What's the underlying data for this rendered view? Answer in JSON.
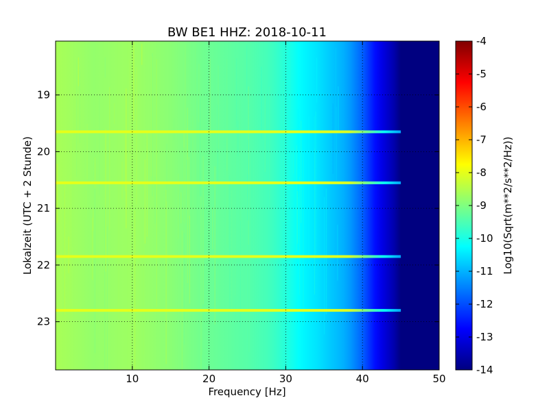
{
  "chart_data": {
    "type": "heatmap",
    "title": "BW BE1 HHZ: 2018-10-11",
    "xlabel": "Frequency [Hz]",
    "ylabel": "Lokalzeit (UTC + 2 Stunde)",
    "xlim": [
      0,
      50
    ],
    "ylim": [
      18.05,
      23.85
    ],
    "y_inverted": true,
    "x_ticks": [
      "10",
      "20",
      "30",
      "40",
      "50"
    ],
    "x_tick_values": [
      10,
      20,
      30,
      40,
      50
    ],
    "y_ticks": [
      "19",
      "20",
      "21",
      "22",
      "23"
    ],
    "y_tick_values": [
      19,
      20,
      21,
      22,
      23
    ],
    "grid": true,
    "colormap": "jet",
    "colorbar": {
      "label": "Log10(Sqrt(m**2/s**2/Hz))",
      "min": -14,
      "max": -4,
      "ticks": [
        "-4",
        "-5",
        "-6",
        "-7",
        "-8",
        "-9",
        "-10",
        "-11",
        "-12",
        "-13",
        "-14"
      ],
      "tick_values": [
        -4,
        -5,
        -6,
        -7,
        -8,
        -9,
        -10,
        -11,
        -12,
        -13,
        -14
      ]
    },
    "spectrum_profile": {
      "frequency_hz": [
        0,
        5,
        10,
        15,
        20,
        25,
        28,
        30,
        32,
        34,
        36,
        38,
        40,
        42,
        44,
        45,
        50
      ],
      "log_amplitude": [
        -8.6,
        -8.8,
        -8.7,
        -8.9,
        -9.2,
        -9.4,
        -9.6,
        -9.9,
        -10.3,
        -10.5,
        -10.8,
        -11.1,
        -11.8,
        -12.8,
        -13.5,
        -14,
        -14
      ]
    },
    "horizontal_bands_time": [
      19.65,
      20.55,
      21.85,
      22.8
    ],
    "band_log_amplitude": -8.0
  }
}
